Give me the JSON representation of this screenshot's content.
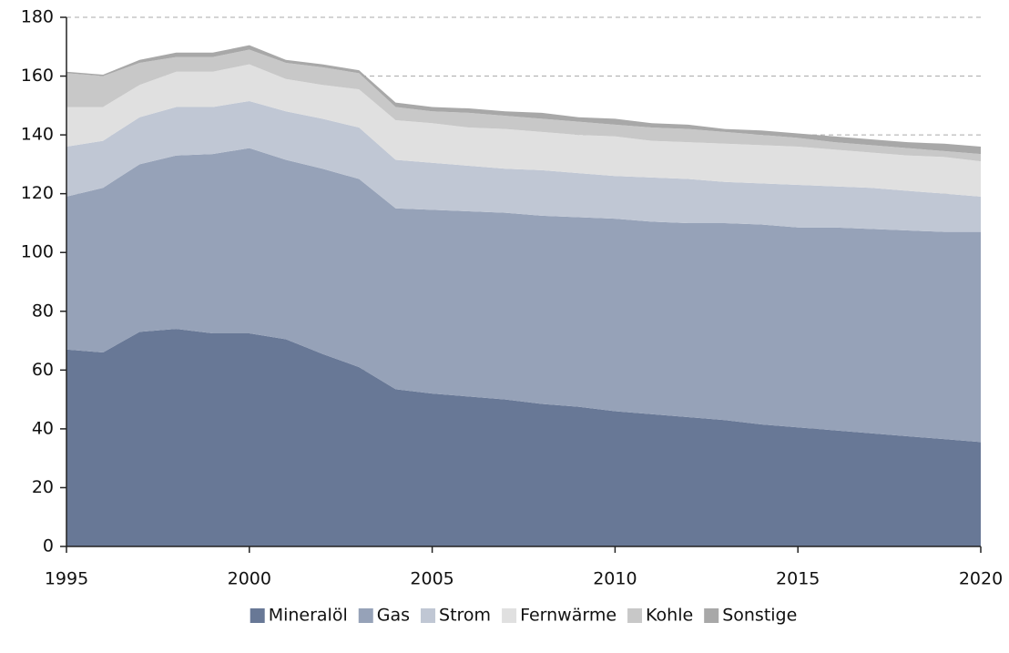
{
  "chart_data": {
    "type": "stacked_area",
    "x": [
      1995,
      1996,
      1997,
      1998,
      1999,
      2000,
      2001,
      2002,
      2003,
      2004,
      2005,
      2006,
      2007,
      2008,
      2009,
      2010,
      2011,
      2012,
      2013,
      2014,
      2015,
      2016,
      2017,
      2018,
      2019,
      2020
    ],
    "series": [
      {
        "name": "Mineralöl",
        "color": "#687896",
        "values": [
          67,
          66,
          73,
          74,
          72.5,
          72.5,
          70.5,
          65.5,
          61,
          53.5,
          52,
          51,
          50,
          48.5,
          47.5,
          46,
          45,
          44,
          43,
          41.5,
          40.5,
          39.5,
          38.5,
          37.5,
          36.5,
          35.5
        ]
      },
      {
        "name": "Gas",
        "color": "#96a2b8",
        "values": [
          52,
          56,
          57,
          59,
          61,
          63,
          61,
          63,
          64,
          61.5,
          62.5,
          63,
          63.5,
          64,
          64.5,
          65.5,
          65.5,
          66,
          67,
          68,
          68,
          69,
          69.5,
          70,
          70.5,
          71.5
        ]
      },
      {
        "name": "Strom",
        "color": "#c0c7d4",
        "values": [
          17,
          16,
          16,
          16.5,
          16,
          16,
          16.5,
          17,
          17.5,
          16.5,
          16,
          15.5,
          15,
          15.5,
          15,
          14.5,
          15,
          15,
          14,
          14,
          14.5,
          14,
          14,
          13.5,
          13,
          12
        ]
      },
      {
        "name": "Fernwärme",
        "color": "#e0e0e0",
        "values": [
          13.5,
          11.5,
          11,
          12,
          12,
          12.5,
          11,
          11.5,
          13,
          13.5,
          13.5,
          13,
          13.5,
          13,
          13,
          13.5,
          12.5,
          12.5,
          13,
          13,
          13,
          12.5,
          12,
          12,
          12.5,
          12
        ]
      },
      {
        "name": "Kohle",
        "color": "#c8c8c8",
        "values": [
          11.5,
          10.5,
          7.5,
          5,
          5,
          5,
          5.5,
          6,
          5.5,
          4.5,
          4,
          5,
          4.5,
          4.5,
          4.5,
          4,
          4.5,
          4.5,
          4,
          3.5,
          3,
          2.5,
          2.5,
          2.5,
          2,
          2.5
        ]
      },
      {
        "name": "Sonstige",
        "color": "#a8a8a8",
        "values": [
          0.5,
          0.5,
          1,
          1.5,
          1.5,
          1.5,
          1,
          1,
          1,
          1.5,
          1.5,
          1.5,
          1.5,
          2,
          1.5,
          2,
          1.5,
          1.5,
          1,
          1.5,
          1.5,
          2,
          2,
          2,
          2.5,
          2.5
        ]
      }
    ],
    "xlim": [
      1995,
      2020
    ],
    "xticks": [
      1995,
      2000,
      2005,
      2010,
      2015,
      2020
    ],
    "ylim": [
      0,
      180
    ],
    "yticks": [
      0,
      20,
      40,
      60,
      80,
      100,
      120,
      140,
      160,
      180
    ],
    "grid": true,
    "legend": "bottom"
  }
}
